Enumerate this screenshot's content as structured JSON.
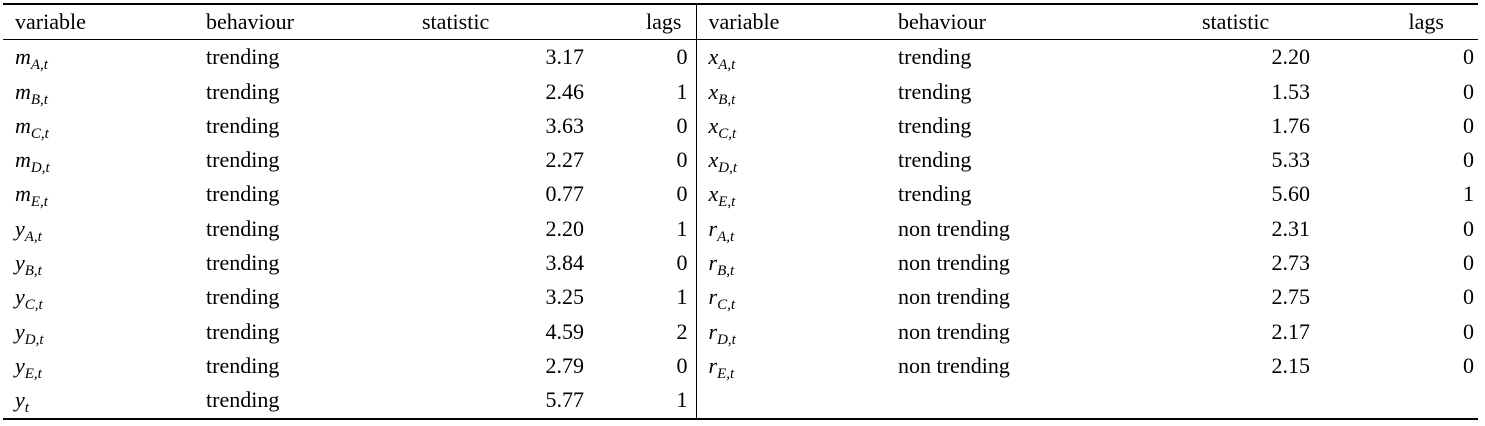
{
  "headers": {
    "variable": "variable",
    "behaviour": "behaviour",
    "statistic": "statistic",
    "lags": "lags"
  },
  "left_rows": [
    {
      "sym": "m",
      "sub": "A,t",
      "behaviour": "trending",
      "statistic": "3.17",
      "lags": "0"
    },
    {
      "sym": "m",
      "sub": "B,t",
      "behaviour": "trending",
      "statistic": "2.46",
      "lags": "1"
    },
    {
      "sym": "m",
      "sub": "C,t",
      "behaviour": "trending",
      "statistic": "3.63",
      "lags": "0"
    },
    {
      "sym": "m",
      "sub": "D,t",
      "behaviour": "trending",
      "statistic": "2.27",
      "lags": "0"
    },
    {
      "sym": "m",
      "sub": "E,t",
      "behaviour": "trending",
      "statistic": "0.77",
      "lags": "0"
    },
    {
      "sym": "y",
      "sub": "A,t",
      "behaviour": "trending",
      "statistic": "2.20",
      "lags": "1"
    },
    {
      "sym": "y",
      "sub": "B,t",
      "behaviour": "trending",
      "statistic": "3.84",
      "lags": "0"
    },
    {
      "sym": "y",
      "sub": "C,t",
      "behaviour": "trending",
      "statistic": "3.25",
      "lags": "1"
    },
    {
      "sym": "y",
      "sub": "D,t",
      "behaviour": "trending",
      "statistic": "4.59",
      "lags": "2"
    },
    {
      "sym": "y",
      "sub": "E,t",
      "behaviour": "trending",
      "statistic": "2.79",
      "lags": "0"
    },
    {
      "sym": "y",
      "sub": "t",
      "behaviour": "trending",
      "statistic": "5.77",
      "lags": "1"
    }
  ],
  "right_rows": [
    {
      "sym": "x",
      "sub": "A,t",
      "behaviour": "trending",
      "statistic": "2.20",
      "lags": "0"
    },
    {
      "sym": "x",
      "sub": "B,t",
      "behaviour": "trending",
      "statistic": "1.53",
      "lags": "0"
    },
    {
      "sym": "x",
      "sub": "C,t",
      "behaviour": "trending",
      "statistic": "1.76",
      "lags": "0"
    },
    {
      "sym": "x",
      "sub": "D,t",
      "behaviour": "trending",
      "statistic": "5.33",
      "lags": "0"
    },
    {
      "sym": "x",
      "sub": "E,t",
      "behaviour": "trending",
      "statistic": "5.60",
      "lags": "1"
    },
    {
      "sym": "r",
      "sub": "A,t",
      "behaviour": "non trending",
      "statistic": "2.31",
      "lags": "0"
    },
    {
      "sym": "r",
      "sub": "B,t",
      "behaviour": "non trending",
      "statistic": "2.73",
      "lags": "0"
    },
    {
      "sym": "r",
      "sub": "C,t",
      "behaviour": "non trending",
      "statistic": "2.75",
      "lags": "0"
    },
    {
      "sym": "r",
      "sub": "D,t",
      "behaviour": "non trending",
      "statistic": "2.17",
      "lags": "0"
    },
    {
      "sym": "r",
      "sub": "E,t",
      "behaviour": "non trending",
      "statistic": "2.15",
      "lags": "0"
    }
  ]
}
